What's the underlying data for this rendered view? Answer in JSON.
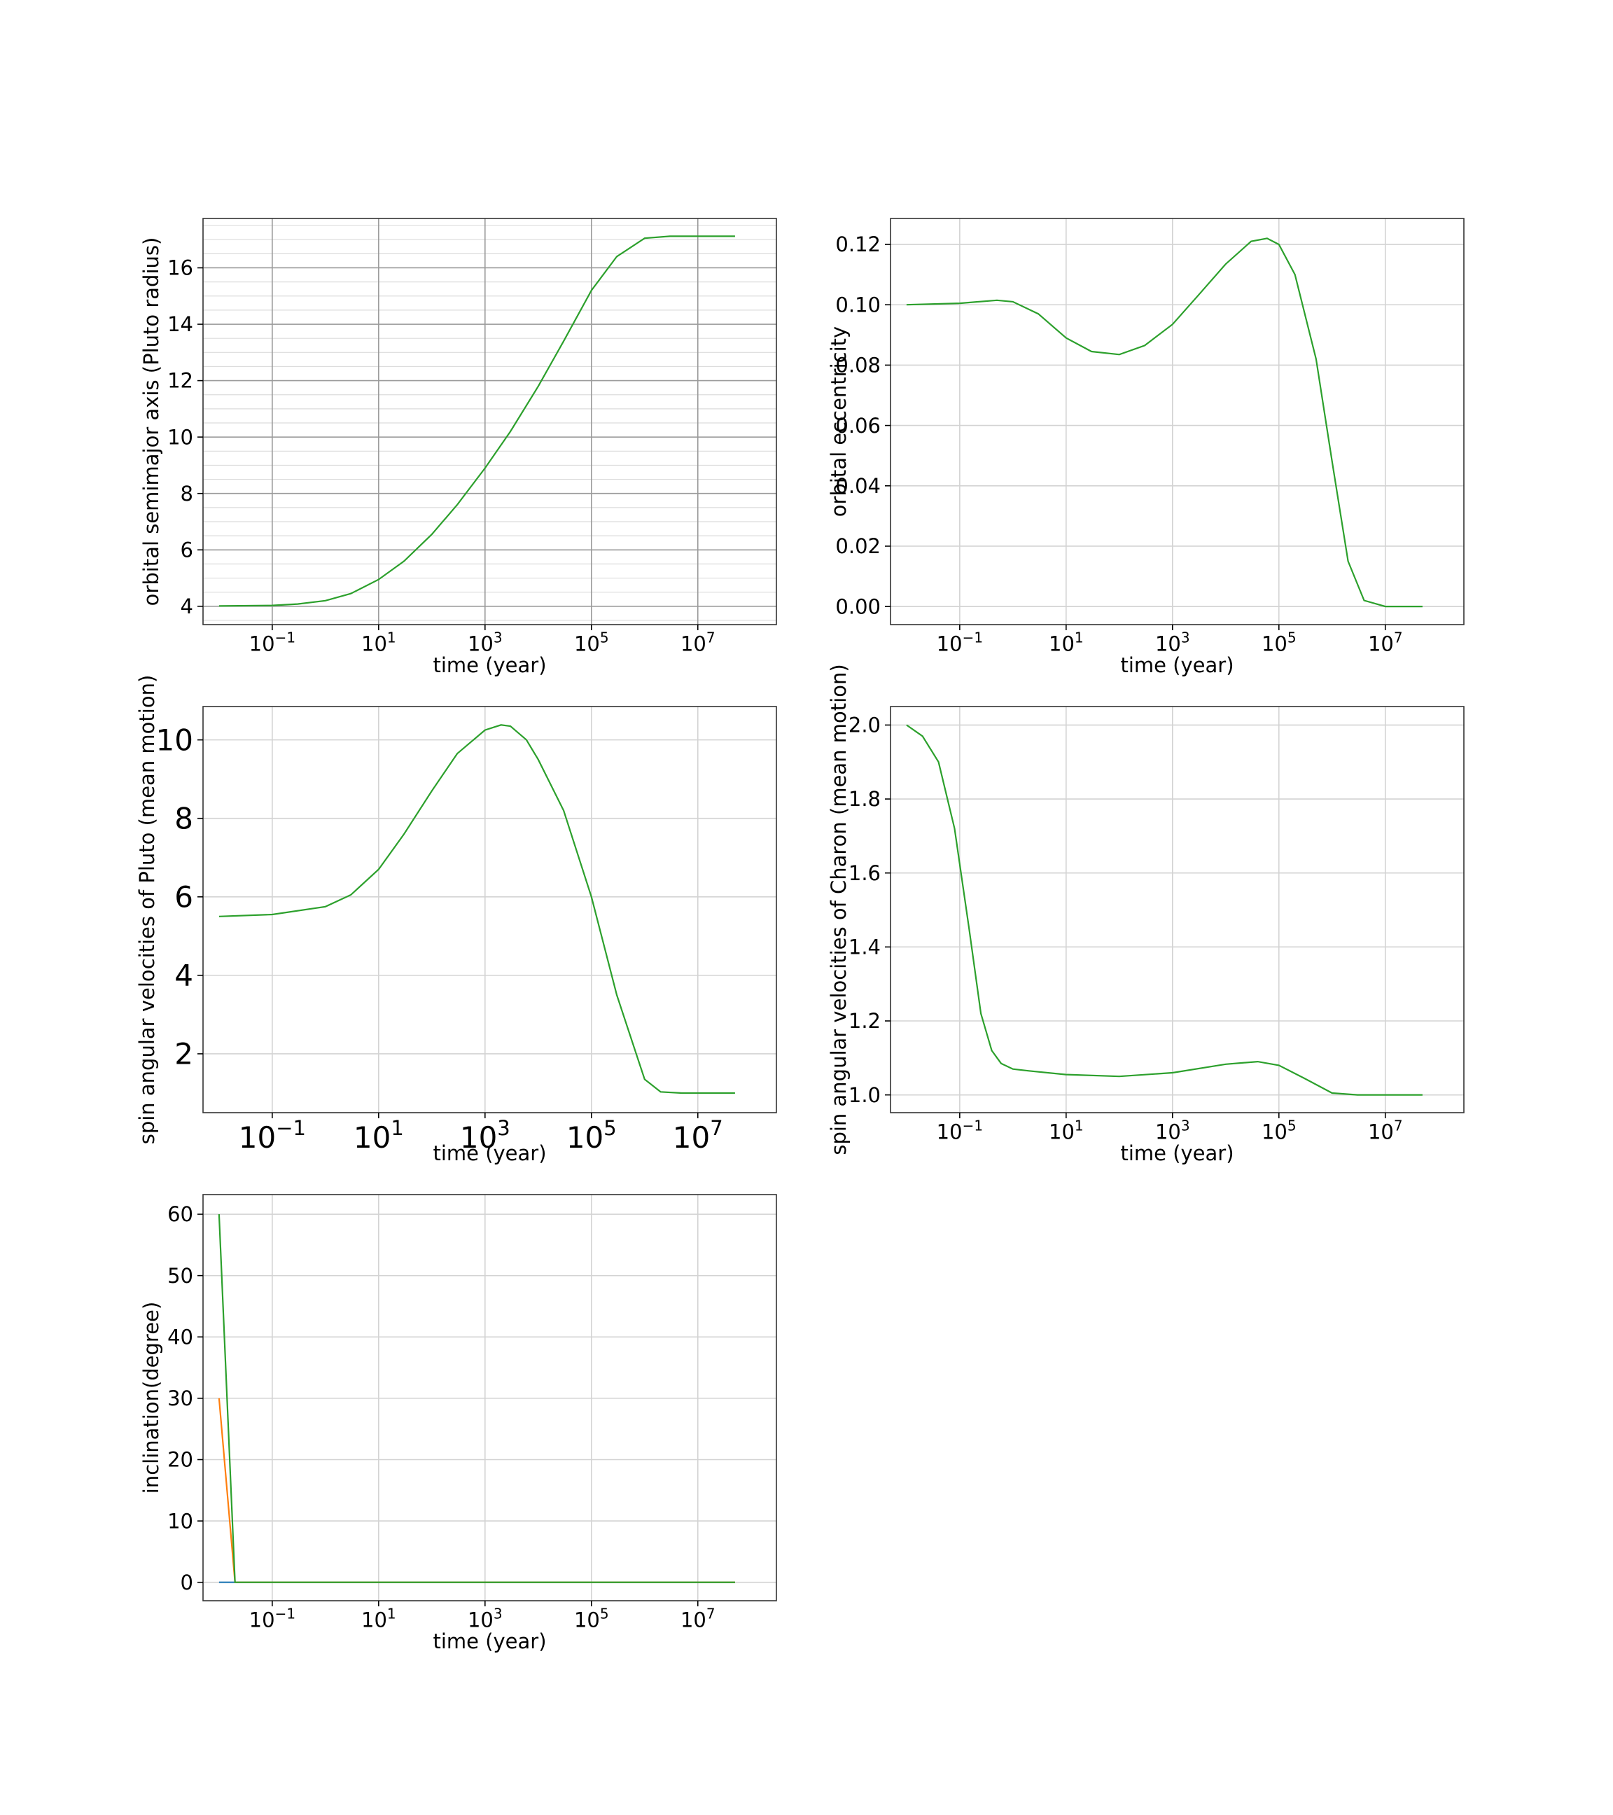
{
  "figure": {
    "background": "#ffffff",
    "line_color": "#2ca02c"
  },
  "chart_data": [
    {
      "id": "semimajor",
      "type": "line",
      "xlabel": "time  (year)",
      "ylabel": "orbital semimajor axis (Pluto radius)",
      "xscale": "log",
      "xlim": [
        0.005,
        300000000
      ],
      "ylim": [
        3.35,
        17.75
      ],
      "xticks": [
        {
          "value": 0.1,
          "base": "10",
          "exp": "−1"
        },
        {
          "value": 10,
          "base": "10",
          "exp": "1"
        },
        {
          "value": 1000,
          "base": "10",
          "exp": "3"
        },
        {
          "value": 100000,
          "base": "10",
          "exp": "5"
        },
        {
          "value": 10000000,
          "base": "10",
          "exp": "7"
        }
      ],
      "yticks": [
        {
          "value": 4,
          "label": "4"
        },
        {
          "value": 6,
          "label": "6"
        },
        {
          "value": 8,
          "label": "8"
        },
        {
          "value": 10,
          "label": "10"
        },
        {
          "value": 12,
          "label": "12"
        },
        {
          "value": 14,
          "label": "14"
        },
        {
          "value": 16,
          "label": "16"
        }
      ],
      "grid": true,
      "minor_grid": true,
      "series": [
        {
          "color": "#2ca02c",
          "x": [
            0.01,
            0.1,
            0.3,
            1,
            3,
            10,
            30,
            100,
            300,
            1000,
            3000,
            10000,
            30000,
            100000,
            300000,
            1000000,
            3000000,
            10000000,
            50000000
          ],
          "y": [
            4.01,
            4.03,
            4.08,
            4.2,
            4.45,
            4.95,
            5.6,
            6.55,
            7.6,
            8.9,
            10.2,
            11.8,
            13.4,
            15.2,
            16.4,
            17.05,
            17.12,
            17.12,
            17.12
          ]
        }
      ]
    },
    {
      "id": "eccentricity",
      "type": "line",
      "xlabel": "time  (year)",
      "ylabel": "orbital eccentricity",
      "xscale": "log",
      "xlim": [
        0.005,
        300000000
      ],
      "ylim": [
        -0.006,
        0.1286
      ],
      "xticks": [
        {
          "value": 0.1,
          "base": "10",
          "exp": "−1"
        },
        {
          "value": 10,
          "base": "10",
          "exp": "1"
        },
        {
          "value": 1000,
          "base": "10",
          "exp": "3"
        },
        {
          "value": 100000,
          "base": "10",
          "exp": "5"
        },
        {
          "value": 10000000,
          "base": "10",
          "exp": "7"
        }
      ],
      "yticks": [
        {
          "value": 0,
          "label": "0.00"
        },
        {
          "value": 0.02,
          "label": "0.02"
        },
        {
          "value": 0.04,
          "label": "0.04"
        },
        {
          "value": 0.06,
          "label": "0.06"
        },
        {
          "value": 0.08,
          "label": "0.08"
        },
        {
          "value": 0.1,
          "label": "0.10"
        },
        {
          "value": 0.12,
          "label": "0.12"
        }
      ],
      "grid": true,
      "minor_grid": false,
      "series": [
        {
          "color": "#2ca02c",
          "x": [
            0.01,
            0.1,
            0.5,
            1,
            3,
            10,
            30,
            100,
            300,
            1000,
            3000,
            10000,
            30000,
            60000,
            100000,
            200000,
            500000,
            1000000,
            2000000,
            4000000,
            10000000,
            50000000
          ],
          "y": [
            0.1,
            0.1005,
            0.1015,
            0.101,
            0.097,
            0.089,
            0.0845,
            0.0835,
            0.0865,
            0.0935,
            0.103,
            0.1135,
            0.121,
            0.122,
            0.12,
            0.11,
            0.082,
            0.048,
            0.015,
            0.002,
            0.0,
            0.0
          ]
        }
      ]
    },
    {
      "id": "spin-pluto",
      "type": "line",
      "xlabel": "time (year)",
      "ylabel": "spin angular velocities of Pluto (mean motion)",
      "xscale": "log",
      "xlim": [
        0.005,
        300000000
      ],
      "ylim": [
        0.5,
        10.85
      ],
      "xticks": [
        {
          "value": 0.1,
          "base": "10",
          "exp": "−1"
        },
        {
          "value": 10,
          "base": "10",
          "exp": "1"
        },
        {
          "value": 1000,
          "base": "10",
          "exp": "3"
        },
        {
          "value": 100000,
          "base": "10",
          "exp": "5"
        },
        {
          "value": 10000000,
          "base": "10",
          "exp": "7"
        }
      ],
      "yticks": [
        {
          "value": 2,
          "label": "2"
        },
        {
          "value": 4,
          "label": "4"
        },
        {
          "value": 6,
          "label": "6"
        },
        {
          "value": 8,
          "label": "8"
        },
        {
          "value": 10,
          "label": "10"
        }
      ],
      "grid": true,
      "minor_grid": false,
      "series": [
        {
          "color": "#2ca02c",
          "x": [
            0.01,
            0.1,
            1,
            3,
            10,
            30,
            100,
            300,
            1000,
            2000,
            3000,
            6000,
            10000,
            30000,
            100000,
            300000,
            1000000,
            2000000,
            5000000,
            50000000
          ],
          "y": [
            5.5,
            5.55,
            5.75,
            6.05,
            6.7,
            7.6,
            8.7,
            9.65,
            10.25,
            10.38,
            10.35,
            10.0,
            9.5,
            8.2,
            6.0,
            3.5,
            1.35,
            1.03,
            1.0,
            1.0
          ]
        }
      ]
    },
    {
      "id": "spin-charon",
      "type": "line",
      "xlabel": "time  (year)",
      "ylabel": "spin angular velocities of Charon (mean motion)",
      "xscale": "log",
      "xlim": [
        0.005,
        300000000
      ],
      "ylim": [
        0.952,
        2.05
      ],
      "xticks": [
        {
          "value": 0.1,
          "base": "10",
          "exp": "−1"
        },
        {
          "value": 10,
          "base": "10",
          "exp": "1"
        },
        {
          "value": 1000,
          "base": "10",
          "exp": "3"
        },
        {
          "value": 100000,
          "base": "10",
          "exp": "5"
        },
        {
          "value": 10000000,
          "base": "10",
          "exp": "7"
        }
      ],
      "yticks": [
        {
          "value": 1.0,
          "label": "1.0"
        },
        {
          "value": 1.2,
          "label": "1.2"
        },
        {
          "value": 1.4,
          "label": "1.4"
        },
        {
          "value": 1.6,
          "label": "1.6"
        },
        {
          "value": 1.8,
          "label": "1.8"
        },
        {
          "value": 2.0,
          "label": "2.0"
        }
      ],
      "grid": true,
      "minor_grid": false,
      "series": [
        {
          "color": "#2ca02c",
          "x": [
            0.01,
            0.02,
            0.04,
            0.08,
            0.15,
            0.25,
            0.4,
            0.6,
            1,
            2,
            10,
            100,
            1000,
            10000,
            40000,
            100000,
            300000,
            1000000,
            3000000,
            50000000
          ],
          "y": [
            2.0,
            1.97,
            1.9,
            1.72,
            1.45,
            1.22,
            1.12,
            1.085,
            1.07,
            1.065,
            1.055,
            1.05,
            1.06,
            1.083,
            1.09,
            1.08,
            1.045,
            1.005,
            1.0,
            1.0
          ]
        }
      ]
    },
    {
      "id": "inclination",
      "type": "line",
      "xlabel": "time  (year)",
      "ylabel": "inclination(degree)",
      "xscale": "log",
      "xlim": [
        0.005,
        300000000
      ],
      "ylim": [
        -3.0,
        63.2
      ],
      "xticks": [
        {
          "value": 0.1,
          "base": "10",
          "exp": "−1"
        },
        {
          "value": 10,
          "base": "10",
          "exp": "1"
        },
        {
          "value": 1000,
          "base": "10",
          "exp": "3"
        },
        {
          "value": 100000,
          "base": "10",
          "exp": "5"
        },
        {
          "value": 10000000,
          "base": "10",
          "exp": "7"
        }
      ],
      "yticks": [
        {
          "value": 0,
          "label": "0"
        },
        {
          "value": 10,
          "label": "10"
        },
        {
          "value": 20,
          "label": "20"
        },
        {
          "value": 30,
          "label": "30"
        },
        {
          "value": 40,
          "label": "40"
        },
        {
          "value": 50,
          "label": "50"
        },
        {
          "value": 60,
          "label": "60"
        }
      ],
      "grid": true,
      "minor_grid": false,
      "series": [
        {
          "color": "#1f77b4",
          "x": [
            0.01,
            0.02,
            50000000
          ],
          "y": [
            0,
            0,
            0
          ]
        },
        {
          "color": "#ff7f0e",
          "x": [
            0.01,
            0.02,
            50000000
          ],
          "y": [
            30,
            0,
            0
          ]
        },
        {
          "color": "#2ca02c",
          "x": [
            0.01,
            0.02,
            50000000
          ],
          "y": [
            60,
            0,
            0
          ]
        }
      ]
    }
  ]
}
